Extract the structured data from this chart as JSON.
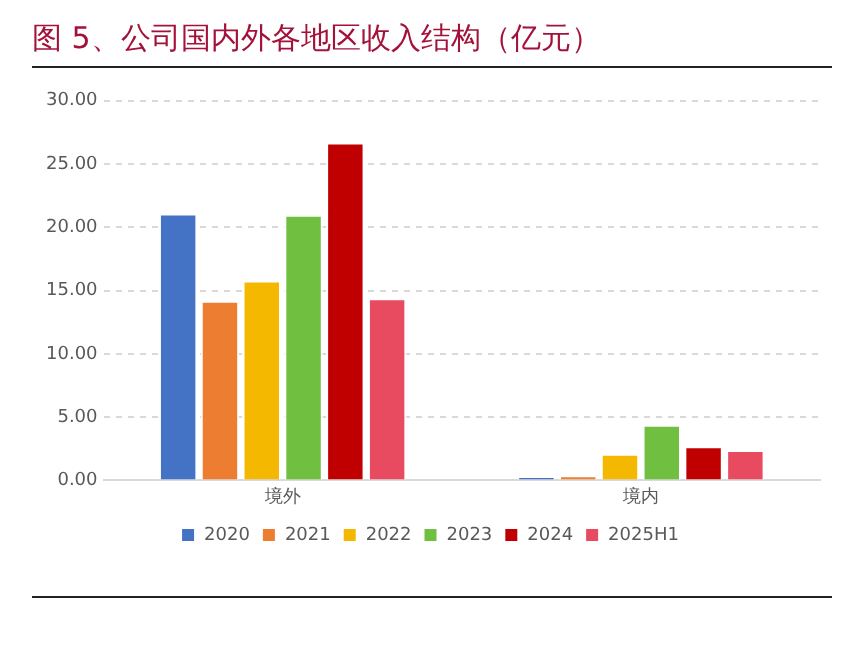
{
  "chart_data": {
    "type": "bar",
    "title": "图 5、公司国内外各地区收入结构（亿元）",
    "categories": [
      "境外",
      "境内"
    ],
    "series": [
      {
        "name": "2020",
        "color": "#4472c4",
        "values": [
          21.1,
          0.3
        ]
      },
      {
        "name": "2021",
        "color": "#ed7d31",
        "values": [
          14.2,
          0.4
        ]
      },
      {
        "name": "2022",
        "color": "#f5b800",
        "values": [
          15.8,
          2.1
        ]
      },
      {
        "name": "2023",
        "color": "#70bf40",
        "values": [
          21.0,
          4.4
        ]
      },
      {
        "name": "2024",
        "color": "#c00000",
        "values": [
          26.7,
          2.7
        ]
      },
      {
        "name": "2025H1",
        "color": "#e84a5f",
        "values": [
          14.4,
          2.4
        ]
      }
    ],
    "ylim": [
      0,
      30
    ],
    "yticks": [
      {
        "value": 0,
        "label": "0.00"
      },
      {
        "value": 5,
        "label": "5.00"
      },
      {
        "value": 10,
        "label": "10.00"
      },
      {
        "value": 15,
        "label": "15.00"
      },
      {
        "value": 20,
        "label": "20.00"
      },
      {
        "value": 25,
        "label": "25.00"
      },
      {
        "value": 30,
        "label": "30.00"
      }
    ],
    "grid": "y",
    "legend": "bottom"
  }
}
